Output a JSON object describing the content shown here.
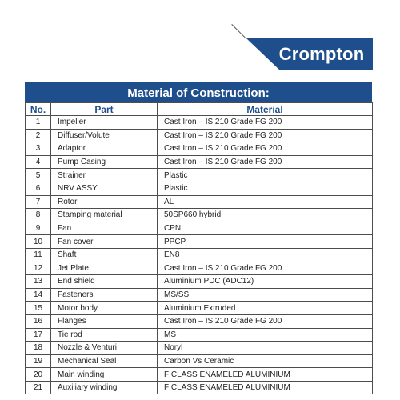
{
  "brand": {
    "name": "Crompton",
    "color": "#1e4e8c"
  },
  "table": {
    "title": "Material of Construction:",
    "headers": [
      "No.",
      "Part",
      "Material"
    ],
    "rows": [
      {
        "no": "1",
        "part": "Impeller",
        "material": "Cast Iron – IS 210 Grade FG 200"
      },
      {
        "no": "2",
        "part": "Diffuser/Volute",
        "material": "Cast Iron – IS 210 Grade FG 200"
      },
      {
        "no": "3",
        "part": "Adaptor",
        "material": "Cast Iron – IS 210 Grade FG 200"
      },
      {
        "no": "4",
        "part": "Pump Casing",
        "material": "Cast Iron – IS 210 Grade FG 200"
      },
      {
        "no": "5",
        "part": "Strainer",
        "material": "Plastic"
      },
      {
        "no": "6",
        "part": "NRV ASSY",
        "material": "Plastic"
      },
      {
        "no": "7",
        "part": "Rotor",
        "material": "AL"
      },
      {
        "no": "8",
        "part": "Stamping material",
        "material": "50SP660 hybrid"
      },
      {
        "no": "9",
        "part": "Fan",
        "material": "CPN"
      },
      {
        "no": "10",
        "part": "Fan cover",
        "material": "PPCP"
      },
      {
        "no": "11",
        "part": "Shaft",
        "material": "EN8"
      },
      {
        "no": "12",
        "part": "Jet Plate",
        "material": "Cast Iron – IS 210 Grade FG 200"
      },
      {
        "no": "13",
        "part": "End shield",
        "material": "Aluminium PDC (ADC12)"
      },
      {
        "no": "14",
        "part": "Fasteners",
        "material": "MS/SS"
      },
      {
        "no": "15",
        "part": "Motor body",
        "material": "Aluminium Extruded"
      },
      {
        "no": "16",
        "part": "Flanges",
        "material": "Cast Iron – IS 210 Grade FG 200"
      },
      {
        "no": "17",
        "part": "Tie rod",
        "material": "MS"
      },
      {
        "no": "18",
        "part": "Nozzle & Venturi",
        "material": "Noryl"
      },
      {
        "no": "19",
        "part": "Mechanical Seal",
        "material": "Carbon Vs Ceramic"
      },
      {
        "no": "20",
        "part": "Main winding",
        "material": "F CLASS ENAMELED ALUMINIUM"
      },
      {
        "no": "21",
        "part": "Auxiliary winding",
        "material": "F CLASS ENAMELED ALUMINIUM"
      }
    ]
  }
}
